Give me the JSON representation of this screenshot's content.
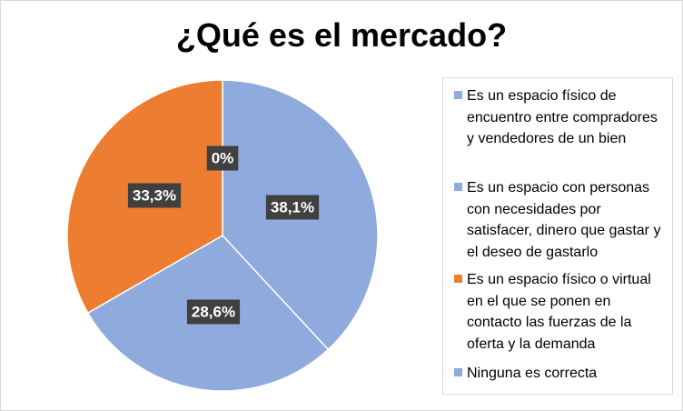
{
  "chart_data": {
    "type": "pie",
    "title": "¿Qué es el mercado?",
    "categories": [
      "Es un espacio físico de encuentro entre compradores y vendedores de un bien",
      "Es un espacio con personas con necesidades por satisfacer, dinero que gastar y el deseo de gastarlo",
      "Es un espacio físico o virtual en el que se ponen en contacto las fuerzas de la oferta y la demanda",
      "Ninguna es correcta"
    ],
    "values": [
      38.1,
      28.6,
      33.3,
      0
    ],
    "data_labels": [
      "38,1%",
      "28,6%",
      "33,3%",
      "0%"
    ],
    "colors": [
      "#8faadc",
      "#8faadc",
      "#ed7d31",
      "#8faadc"
    ],
    "legend_position": "right"
  }
}
